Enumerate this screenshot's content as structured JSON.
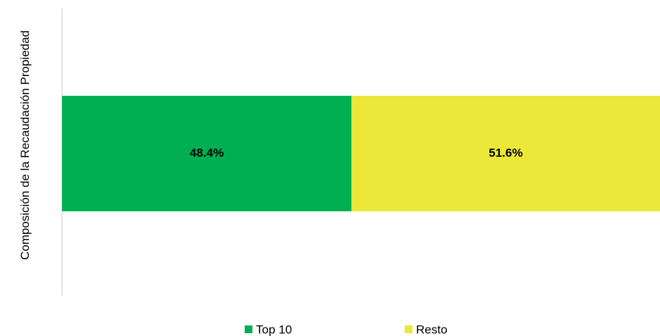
{
  "chart_data": {
    "type": "stacked_bar_horizontal",
    "categories": [
      "Composición de la Recaudación Propiedad"
    ],
    "series": [
      {
        "name": "Top 10",
        "color": "#00b050",
        "values": [
          48.4
        ],
        "value_labels": [
          "48.4%"
        ]
      },
      {
        "name": "Resto",
        "color": "#ebe83a",
        "values": [
          51.6
        ],
        "value_labels": [
          "51.6%"
        ]
      }
    ],
    "xlim": [
      0,
      100
    ],
    "legend": "bottom"
  }
}
